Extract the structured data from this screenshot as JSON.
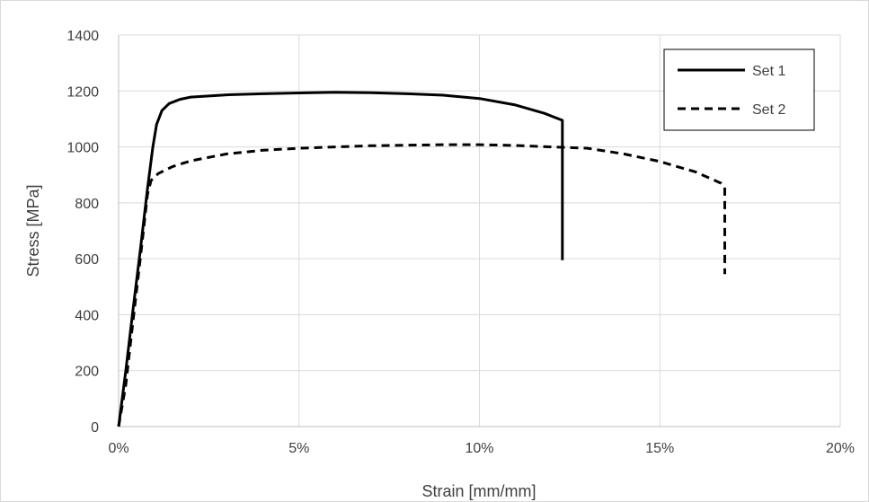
{
  "chart_data": {
    "type": "line",
    "title": "",
    "xlabel": "Strain [mm/mm]",
    "ylabel": "Stress [MPa]",
    "xlim": [
      0,
      0.2
    ],
    "ylim": [
      0,
      1400
    ],
    "x_ticks": [
      0,
      0.05,
      0.1,
      0.15,
      0.2
    ],
    "x_tick_labels": [
      "0%",
      "5%",
      "10%",
      "15%",
      "20%"
    ],
    "y_ticks": [
      0,
      200,
      400,
      600,
      800,
      1000,
      1200,
      1400
    ],
    "y_tick_labels": [
      "0",
      "200",
      "400",
      "600",
      "800",
      "1000",
      "1200",
      "1400"
    ],
    "grid": true,
    "legend_position": "top-right",
    "series": [
      {
        "name": "Set 1",
        "style": "solid",
        "color": "#000000",
        "points": [
          [
            0.0,
            0
          ],
          [
            0.002,
            200
          ],
          [
            0.004,
            420
          ],
          [
            0.006,
            630
          ],
          [
            0.008,
            850
          ],
          [
            0.0095,
            1000
          ],
          [
            0.0105,
            1080
          ],
          [
            0.012,
            1130
          ],
          [
            0.014,
            1155
          ],
          [
            0.017,
            1170
          ],
          [
            0.02,
            1178
          ],
          [
            0.03,
            1186
          ],
          [
            0.04,
            1190
          ],
          [
            0.05,
            1193
          ],
          [
            0.06,
            1195
          ],
          [
            0.07,
            1194
          ],
          [
            0.08,
            1190
          ],
          [
            0.09,
            1185
          ],
          [
            0.1,
            1173
          ],
          [
            0.11,
            1150
          ],
          [
            0.118,
            1120
          ],
          [
            0.123,
            1095
          ],
          [
            0.123,
            595
          ]
        ]
      },
      {
        "name": "Set 2",
        "style": "dashed",
        "color": "#000000",
        "points": [
          [
            0.0,
            0
          ],
          [
            0.002,
            150
          ],
          [
            0.004,
            380
          ],
          [
            0.006,
            600
          ],
          [
            0.008,
            830
          ],
          [
            0.009,
            880
          ],
          [
            0.011,
            905
          ],
          [
            0.015,
            930
          ],
          [
            0.02,
            950
          ],
          [
            0.03,
            975
          ],
          [
            0.04,
            988
          ],
          [
            0.05,
            995
          ],
          [
            0.06,
            1000
          ],
          [
            0.07,
            1004
          ],
          [
            0.08,
            1006
          ],
          [
            0.09,
            1008
          ],
          [
            0.1,
            1008
          ],
          [
            0.11,
            1005
          ],
          [
            0.12,
            1000
          ],
          [
            0.13,
            995
          ],
          [
            0.14,
            975
          ],
          [
            0.15,
            948
          ],
          [
            0.16,
            910
          ],
          [
            0.167,
            870
          ],
          [
            0.168,
            855
          ],
          [
            0.168,
            545
          ]
        ]
      }
    ]
  }
}
